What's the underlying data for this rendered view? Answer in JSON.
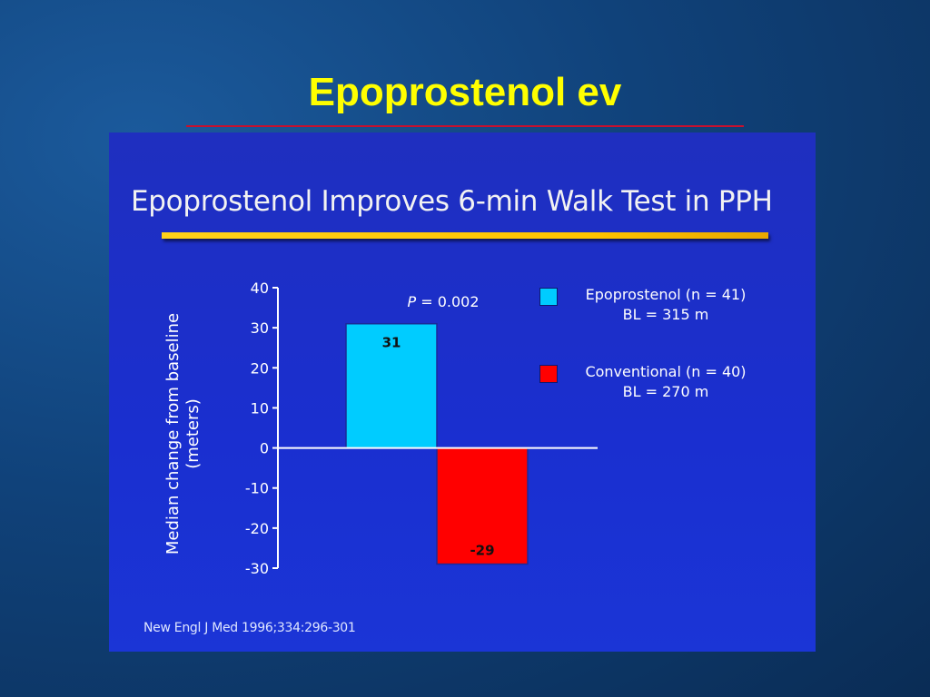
{
  "slide": {
    "title": "Epoprostenol ev"
  },
  "panel": {
    "title": "Epoprostenol Improves 6-min Walk Test in PPH",
    "citation": "New Engl J Med  1996;334:296-301"
  },
  "chart_data": {
    "type": "bar",
    "title": "Epoprostenol Improves 6-min Walk Test in PPH",
    "ylabel_lines": [
      "Median change from baseline",
      "(meters)"
    ],
    "ylim": [
      -30,
      40
    ],
    "yticks": [
      40,
      30,
      20,
      10,
      0,
      -10,
      -20,
      -30
    ],
    "annotation": "P = 0.002",
    "annotation_prefix": "P",
    "annotation_rest": " = 0.002",
    "series": [
      {
        "name": "Epoprostenol (n = 41)",
        "sub": "BL = 315 m",
        "value": 31,
        "label": "31",
        "color": "#00ccff"
      },
      {
        "name": "Conventional (n = 40)",
        "sub": "BL = 270 m",
        "value": -29,
        "label": "-29",
        "color": "#ff0000"
      }
    ],
    "grid": false,
    "legend": "right"
  }
}
